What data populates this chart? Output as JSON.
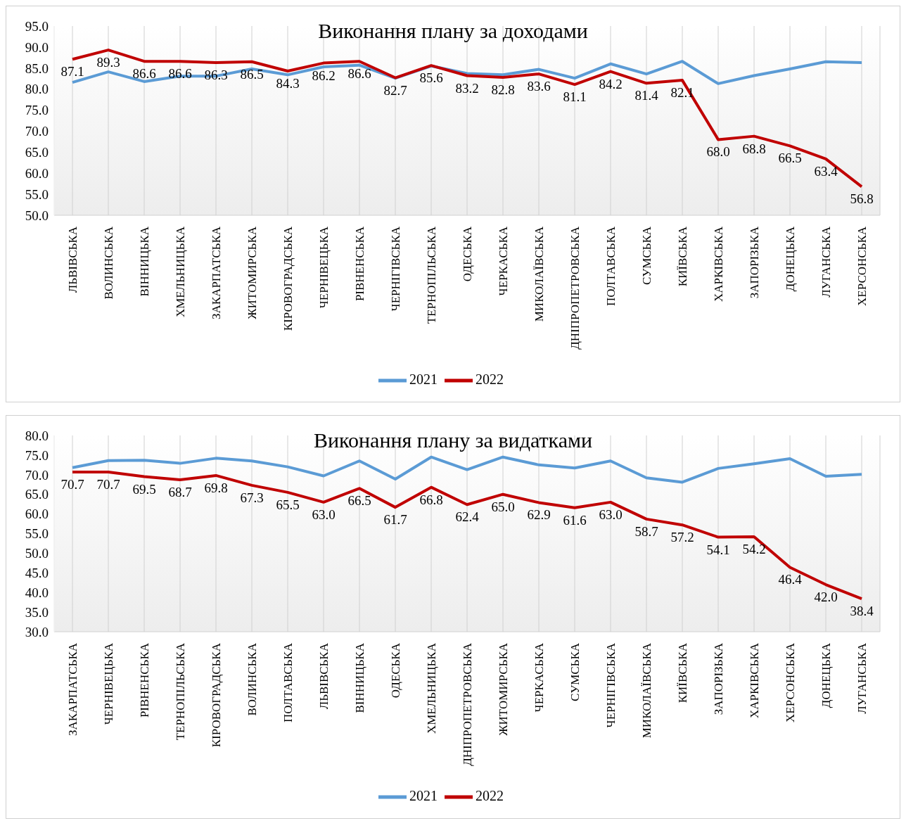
{
  "chart_data": [
    {
      "type": "line",
      "title": "Виконання плану за доходами",
      "categories": [
        "ЛЬВІВСЬКА",
        "ВОЛИНСЬКА",
        "ВІННИЦЬКА",
        "ХМЕЛЬНИЦЬКА",
        "ЗАКАРПАТСЬКА",
        "ЖИТОМИРСЬКА",
        "КІРОВОГРАДСЬКА",
        "ЧЕРНІВЕЦЬКА",
        "РІВНЕНСЬКА",
        "ЧЕРНІГІВСЬКА",
        "ТЕРНОПІЛЬСЬКА",
        "ОДЕСЬКА",
        "ЧЕРКАСЬКА",
        "МИКОЛАЇВСЬКА",
        "ДНІПРОПЕТРОВСЬКА",
        "ПОЛТАВСЬКА",
        "СУМСЬКА",
        "КИЇВСЬКА",
        "ХАРКІВСЬКА",
        "ЗАПОРІЗЬКА",
        "ДОНЕЦЬКА",
        "ЛУГАНСЬКА",
        "ХЕРСОНСЬКА"
      ],
      "series": [
        {
          "name": "2021",
          "color": "#5b9bd5",
          "values": [
            81.6,
            84.1,
            81.8,
            83.1,
            83.1,
            84.8,
            83.4,
            85.3,
            85.7,
            82.6,
            85.5,
            83.7,
            83.4,
            84.7,
            82.6,
            86.0,
            83.6,
            86.6,
            81.3,
            83.2,
            84.8,
            86.5,
            86.3
          ]
        },
        {
          "name": "2022",
          "color": "#c00000",
          "values": [
            87.1,
            89.3,
            86.6,
            86.6,
            86.3,
            86.5,
            84.3,
            86.2,
            86.6,
            82.7,
            85.6,
            83.2,
            82.8,
            83.6,
            81.1,
            84.2,
            81.4,
            82.1,
            68.0,
            68.8,
            66.5,
            63.4,
            56.8
          ],
          "value_labels": [
            "87.1",
            "89.3",
            "86.6",
            "86.6",
            "86.3",
            "86.5",
            "84.3",
            "86.2",
            "86.6",
            "82.7",
            "85.6",
            "83.2",
            "82.8",
            "83.6",
            "81.1",
            "84.2",
            "81.4",
            "82.1",
            "68.0",
            "68.8",
            "66.5",
            "63.4",
            "56.8"
          ]
        }
      ],
      "ylim": [
        50,
        95
      ],
      "yticks": [
        {
          "value": 50,
          "label": "50.0"
        },
        {
          "value": 55,
          "label": "55.0"
        },
        {
          "value": 60,
          "label": "60.0"
        },
        {
          "value": 65,
          "label": "65.0"
        },
        {
          "value": 70,
          "label": "70.0"
        },
        {
          "value": 75,
          "label": "75.0"
        },
        {
          "value": 80,
          "label": "80.0"
        },
        {
          "value": 85,
          "label": "85.0"
        },
        {
          "value": 90,
          "label": "90.0"
        },
        {
          "value": 95,
          "label": "95.0"
        }
      ],
      "grid": "x",
      "legend": "bottom",
      "marker": "none"
    },
    {
      "type": "line",
      "title": "Виконання плану за видатками",
      "categories": [
        "ЗАКАРПАТСЬКА",
        "ЧЕРНІВЕЦЬКА",
        "РІВНЕНСЬКА",
        "ТЕРНОПІЛЬСЬКА",
        "КІРОВОГРАДСЬКА",
        "ВОЛИНСЬКА",
        "ПОЛТАВСЬКА",
        "ЛЬВІВСЬКА",
        "ВІННИЦЬКА",
        "ОДЕСЬКА",
        "ХМЕЛЬНИЦЬКА",
        "ДНІПРОПЕТРОВСЬКА",
        "ЖИТОМИРСЬКА",
        "ЧЕРКАСЬКА",
        "СУМСЬКА",
        "ЧЕРНІГІВСЬКА",
        "МИКОЛАЇВСЬКА",
        "КИЇВСЬКА",
        "ЗАПОРІЗЬКА",
        "ХАРКІВСЬКА",
        "ХЕРСОНСЬКА",
        "ДОНЕЦЬКА",
        "ЛУГАНСЬКА"
      ],
      "series": [
        {
          "name": "2021",
          "color": "#5b9bd5",
          "values": [
            71.8,
            73.6,
            73.7,
            72.9,
            74.2,
            73.5,
            72.0,
            69.7,
            73.5,
            68.9,
            74.5,
            71.3,
            74.5,
            72.5,
            71.7,
            73.5,
            69.2,
            68.1,
            71.6,
            72.8,
            74.1,
            69.6,
            70.1
          ]
        },
        {
          "name": "2022",
          "color": "#c00000",
          "values": [
            70.7,
            70.7,
            69.5,
            68.7,
            69.8,
            67.3,
            65.5,
            63.0,
            66.5,
            61.7,
            66.8,
            62.4,
            65.0,
            62.9,
            61.6,
            63.0,
            58.7,
            57.2,
            54.1,
            54.2,
            46.4,
            42.0,
            38.4
          ],
          "value_labels": [
            "70.7",
            "70.7",
            "69.5",
            "68.7",
            "69.8",
            "67.3",
            "65.5",
            "63.0",
            "66.5",
            "61.7",
            "66.8",
            "62.4",
            "65.0",
            "62.9",
            "61.6",
            "63.0",
            "58.7",
            "57.2",
            "54.1",
            "54.2",
            "46.4",
            "42.0",
            "38.4"
          ]
        }
      ],
      "ylim": [
        30,
        80
      ],
      "yticks": [
        {
          "value": 30,
          "label": "30.0"
        },
        {
          "value": 35,
          "label": "35.0"
        },
        {
          "value": 40,
          "label": "40.0"
        },
        {
          "value": 45,
          "label": "45.0"
        },
        {
          "value": 50,
          "label": "50.0"
        },
        {
          "value": 55,
          "label": "55.0"
        },
        {
          "value": 60,
          "label": "60.0"
        },
        {
          "value": 65,
          "label": "65.0"
        },
        {
          "value": 70,
          "label": "70.0"
        },
        {
          "value": 75,
          "label": "75.0"
        },
        {
          "value": 80,
          "label": "80.0"
        }
      ],
      "grid": "x",
      "legend": "bottom",
      "marker": "none"
    }
  ]
}
